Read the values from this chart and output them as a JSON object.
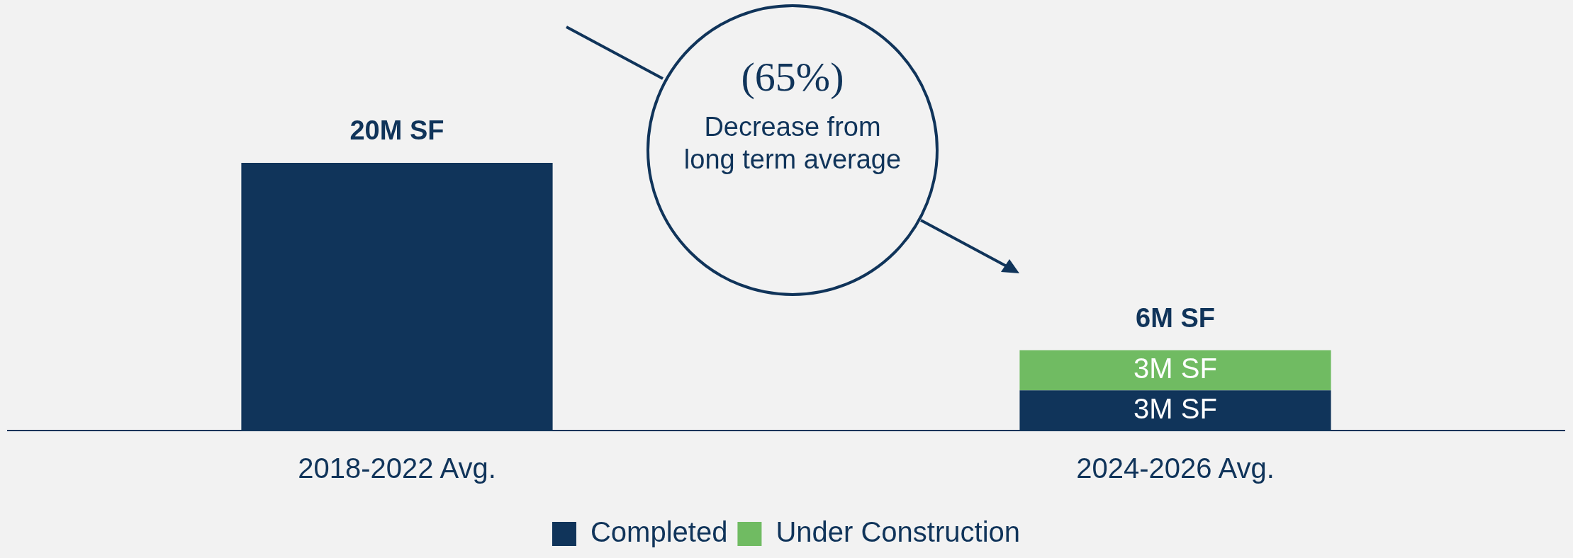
{
  "chart_data": {
    "type": "bar",
    "stacked": true,
    "categories": [
      "2018-2022 Avg.",
      "2024-2026 Avg."
    ],
    "series": [
      {
        "name": "Completed",
        "color": "#10345a",
        "values": [
          20,
          3
        ],
        "value_labels": [
          null,
          "3M SF"
        ]
      },
      {
        "name": "Under Construction",
        "color": "#70bb62",
        "values": [
          null,
          3
        ],
        "value_labels": [
          null,
          "3M SF"
        ]
      }
    ],
    "totals": [
      "20M SF",
      "6M SF"
    ],
    "tick_labels": "x",
    "grid": false,
    "legend": "bottom",
    "annotations": [
      "(65%)",
      "Decrease from long term average"
    ]
  }
}
